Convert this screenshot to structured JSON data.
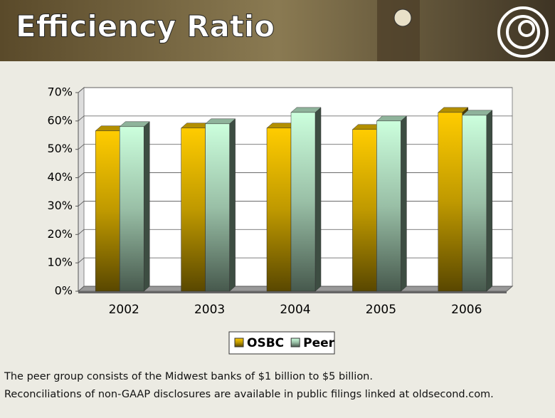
{
  "chart_data": {
    "type": "bar",
    "title": "Efficiency Ratio",
    "categories": [
      "2002",
      "2003",
      "2004",
      "2005",
      "2006"
    ],
    "series": [
      {
        "name": "OSBC",
        "color": "#ffcc00",
        "values": [
          56.5,
          57.5,
          57.5,
          57,
          63
        ]
      },
      {
        "name": "Peer",
        "color": "#ccffdd",
        "values": [
          58,
          59,
          63,
          60,
          62
        ]
      }
    ],
    "ylim": [
      0,
      70
    ],
    "yticks": [
      {
        "value": 0,
        "label": "0%"
      },
      {
        "value": 10,
        "label": "10%"
      },
      {
        "value": 20,
        "label": "20%"
      },
      {
        "value": 30,
        "label": "30%"
      },
      {
        "value": 40,
        "label": "40%"
      },
      {
        "value": 50,
        "label": "50%"
      },
      {
        "value": 60,
        "label": "60%"
      },
      {
        "value": 70,
        "label": "70%"
      }
    ],
    "grid": true,
    "legend": "bottom",
    "notes": [
      "The peer group consists of the Midwest banks of $1 billion to $5 billion.",
      "Reconciliations of non-GAAP disclosures are available in public filings linked at oldsecond.com."
    ]
  }
}
